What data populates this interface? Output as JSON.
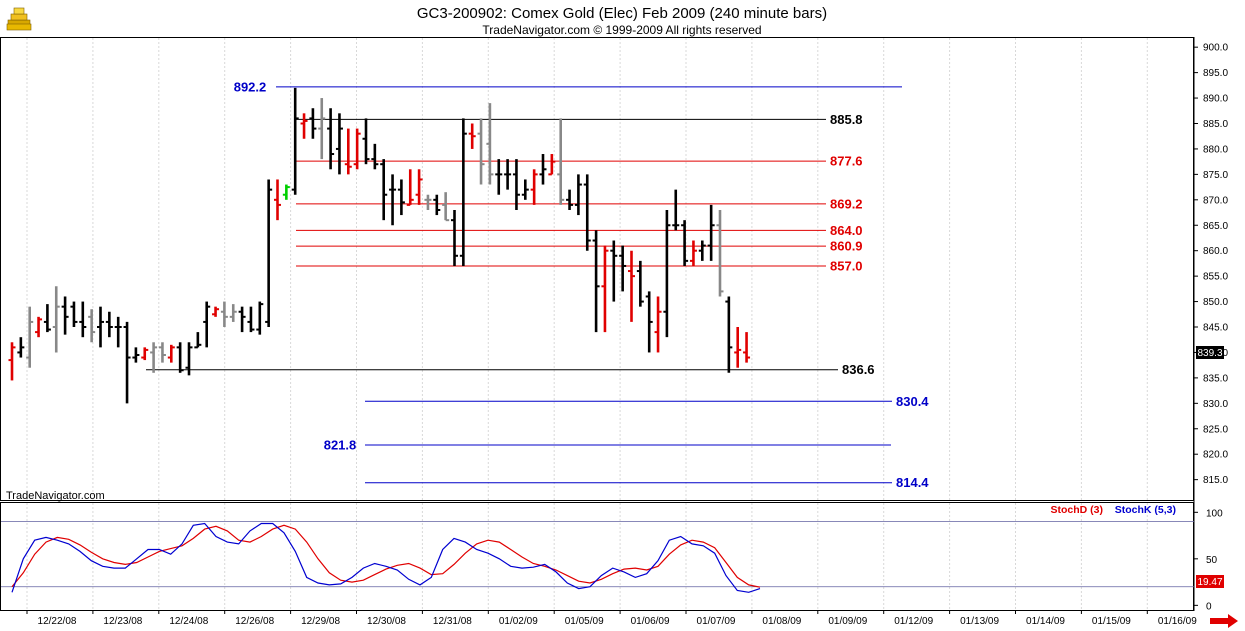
{
  "header": {
    "title": "GC3-200902:  Comex Gold (Elec) Feb 2009  (240 minute bars)",
    "subtitle": "TradeNavigator.com © 1999-2009 All rights reserved",
    "watermark": "TradeNavigator.com"
  },
  "icons": {
    "logo": "gold-bars-icon",
    "scroll": "scroll-right-arrow-icon"
  },
  "colors": {
    "up_bar": "#e00000",
    "down_bar": "#000000",
    "neutral_bar": "#888888",
    "blue_level": "#0000c8",
    "red_level": "#e00000",
    "black_level": "#000000",
    "stochD": "#e00000",
    "stochK": "#0000d0",
    "grid": "#d8d8d8"
  },
  "chart_data": [
    {
      "type": "ohlc",
      "title": "GC3-200902:  Comex Gold (Elec) Feb 2009  (240 minute bars)",
      "ylim": [
        811,
        902
      ],
      "y_ticks": [
        "900.0",
        "895.0",
        "890.0",
        "885.0",
        "880.0",
        "875.0",
        "870.0",
        "865.0",
        "860.0",
        "855.0",
        "850.0",
        "845.0",
        "840.0",
        "835.0",
        "830.0",
        "825.0",
        "820.0",
        "815.0"
      ],
      "x_ticks": [
        "12/22/08",
        "12/23/08",
        "12/24/08",
        "12/26/08",
        "12/29/08",
        "12/30/08",
        "12/31/08",
        "01/02/09",
        "01/05/09",
        "01/06/09",
        "01/07/09",
        "01/08/09",
        "01/09/09",
        "01/12/09",
        "01/13/09",
        "01/14/09",
        "01/15/09",
        "01/16/09"
      ],
      "last_price": "839.3",
      "levels": [
        {
          "label": "892.2",
          "value": 892.2,
          "color": "blue"
        },
        {
          "label": "885.8",
          "value": 885.8,
          "color": "black"
        },
        {
          "label": "877.6",
          "value": 877.6,
          "color": "red"
        },
        {
          "label": "869.2",
          "value": 869.2,
          "color": "red"
        },
        {
          "label": "864.0",
          "value": 864.0,
          "color": "red"
        },
        {
          "label": "860.9",
          "value": 860.9,
          "color": "red"
        },
        {
          "label": "857.0",
          "value": 857.0,
          "color": "red"
        },
        {
          "label": "836.6",
          "value": 836.6,
          "color": "black"
        },
        {
          "label": "830.4",
          "value": 830.4,
          "color": "blue"
        },
        {
          "label": "821.8",
          "value": 821.8,
          "color": "blue"
        },
        {
          "label": "814.4",
          "value": 814.4,
          "color": "blue"
        }
      ],
      "bars": [
        {
          "o": 838.5,
          "h": 842.0,
          "l": 834.5,
          "c": 841.0,
          "col": "red"
        },
        {
          "o": 840.0,
          "h": 843.0,
          "l": 839.0,
          "c": 841.0,
          "col": "black"
        },
        {
          "o": 839.0,
          "h": 849.0,
          "l": 837.0,
          "c": 846.0,
          "col": "gray"
        },
        {
          "o": 844.0,
          "h": 847.0,
          "l": 843.0,
          "c": 846.5,
          "col": "red"
        },
        {
          "o": 846.0,
          "h": 849.5,
          "l": 844.0,
          "c": 844.5,
          "col": "black"
        },
        {
          "o": 845.0,
          "h": 853.0,
          "l": 840.0,
          "c": 849.0,
          "col": "gray"
        },
        {
          "o": 849.0,
          "h": 851.0,
          "l": 843.5,
          "c": 847.0,
          "col": "black"
        },
        {
          "o": 849.0,
          "h": 850.0,
          "l": 845.0,
          "c": 846.0,
          "col": "black"
        },
        {
          "o": 846.0,
          "h": 850.0,
          "l": 843.0,
          "c": 845.0,
          "col": "black"
        },
        {
          "o": 847.0,
          "h": 848.5,
          "l": 842.0,
          "c": 844.0,
          "col": "gray"
        },
        {
          "o": 845.0,
          "h": 849.0,
          "l": 841.0,
          "c": 846.0,
          "col": "black"
        },
        {
          "o": 846.0,
          "h": 848.0,
          "l": 843.0,
          "c": 845.0,
          "col": "black"
        },
        {
          "o": 845.0,
          "h": 847.0,
          "l": 841.0,
          "c": 845.0,
          "col": "black"
        },
        {
          "o": 845.0,
          "h": 846.0,
          "l": 830.0,
          "c": 839.0,
          "col": "black"
        },
        {
          "o": 839.0,
          "h": 841.0,
          "l": 838.0,
          "c": 839.5,
          "col": "black"
        },
        {
          "o": 839.0,
          "h": 841.0,
          "l": 838.5,
          "c": 840.5,
          "col": "red"
        },
        {
          "o": 840.0,
          "h": 842.0,
          "l": 836.0,
          "c": 841.0,
          "col": "gray"
        },
        {
          "o": 841.0,
          "h": 842.0,
          "l": 838.0,
          "c": 839.5,
          "col": "gray"
        },
        {
          "o": 839.0,
          "h": 841.5,
          "l": 838.0,
          "c": 841.0,
          "col": "red"
        },
        {
          "o": 841.0,
          "h": 842.0,
          "l": 836.0,
          "c": 836.5,
          "col": "black"
        },
        {
          "o": 837.0,
          "h": 842.0,
          "l": 835.5,
          "c": 841.0,
          "col": "black"
        },
        {
          "o": 841.0,
          "h": 844.0,
          "l": 841.0,
          "c": 841.5,
          "col": "black"
        },
        {
          "o": 846.0,
          "h": 850.0,
          "l": 841.0,
          "c": 849.0,
          "col": "black"
        },
        {
          "o": 847.5,
          "h": 849.0,
          "l": 847.0,
          "c": 848.5,
          "col": "red"
        },
        {
          "o": 848.0,
          "h": 850.0,
          "l": 845.0,
          "c": 847.0,
          "col": "gray"
        },
        {
          "o": 847.0,
          "h": 849.5,
          "l": 846.0,
          "c": 848.0,
          "col": "gray"
        },
        {
          "o": 848.0,
          "h": 849.0,
          "l": 844.0,
          "c": 847.0,
          "col": "black"
        },
        {
          "o": 846.0,
          "h": 849.0,
          "l": 844.0,
          "c": 844.5,
          "col": "black"
        },
        {
          "o": 844.5,
          "h": 850.0,
          "l": 843.5,
          "c": 849.5,
          "col": "black"
        },
        {
          "o": 846.0,
          "h": 874.0,
          "l": 845.0,
          "c": 872.0,
          "col": "black"
        },
        {
          "o": 870.0,
          "h": 874.0,
          "l": 866.0,
          "c": 869.0,
          "col": "red"
        },
        {
          "o": 871.0,
          "h": 873.0,
          "l": 870.0,
          "c": 872.5,
          "col": "green"
        },
        {
          "o": 872.0,
          "h": 892.0,
          "l": 871.0,
          "c": 886.0,
          "col": "black"
        },
        {
          "o": 885.0,
          "h": 887.0,
          "l": 882.0,
          "c": 885.5,
          "col": "red"
        },
        {
          "o": 886.0,
          "h": 888.0,
          "l": 882.0,
          "c": 884.0,
          "col": "black"
        },
        {
          "o": 884.0,
          "h": 890.0,
          "l": 878.0,
          "c": 886.0,
          "col": "gray"
        },
        {
          "o": 884.0,
          "h": 888.0,
          "l": 876.0,
          "c": 879.0,
          "col": "black"
        },
        {
          "o": 880.0,
          "h": 887.0,
          "l": 875.0,
          "c": 884.0,
          "col": "black"
        },
        {
          "o": 877.0,
          "h": 884.0,
          "l": 875.0,
          "c": 876.5,
          "col": "red"
        },
        {
          "o": 877.0,
          "h": 884.0,
          "l": 876.0,
          "c": 883.0,
          "col": "red"
        },
        {
          "o": 882.0,
          "h": 886.0,
          "l": 877.0,
          "c": 878.0,
          "col": "black"
        },
        {
          "o": 878.0,
          "h": 881.0,
          "l": 876.0,
          "c": 877.0,
          "col": "black"
        },
        {
          "o": 877.0,
          "h": 878.0,
          "l": 866.0,
          "c": 871.0,
          "col": "black"
        },
        {
          "o": 872.0,
          "h": 875.0,
          "l": 865.0,
          "c": 872.0,
          "col": "black"
        },
        {
          "o": 872.0,
          "h": 874.0,
          "l": 867.0,
          "c": 869.5,
          "col": "black"
        },
        {
          "o": 869.0,
          "h": 876.0,
          "l": 869.0,
          "c": 870.0,
          "col": "red"
        },
        {
          "o": 871.0,
          "h": 876.0,
          "l": 869.0,
          "c": 874.0,
          "col": "red"
        },
        {
          "o": 870.0,
          "h": 871.0,
          "l": 868.0,
          "c": 870.0,
          "col": "gray"
        },
        {
          "o": 870.0,
          "h": 871.0,
          "l": 867.0,
          "c": 868.0,
          "col": "black"
        },
        {
          "o": 869.0,
          "h": 871.5,
          "l": 866.0,
          "c": 866.0,
          "col": "gray"
        },
        {
          "o": 866.0,
          "h": 868.0,
          "l": 857.0,
          "c": 859.0,
          "col": "black"
        },
        {
          "o": 859.0,
          "h": 886.0,
          "l": 857.0,
          "c": 883.0,
          "col": "black"
        },
        {
          "o": 883.0,
          "h": 885.0,
          "l": 880.0,
          "c": 882.5,
          "col": "red"
        },
        {
          "o": 883.0,
          "h": 886.0,
          "l": 873.0,
          "c": 877.0,
          "col": "gray"
        },
        {
          "o": 881.0,
          "h": 889.0,
          "l": 873.0,
          "c": 875.0,
          "col": "gray"
        },
        {
          "o": 875.0,
          "h": 878.0,
          "l": 871.0,
          "c": 875.0,
          "col": "black"
        },
        {
          "o": 875.0,
          "h": 878.0,
          "l": 872.0,
          "c": 875.0,
          "col": "black"
        },
        {
          "o": 875.0,
          "h": 878.0,
          "l": 868.0,
          "c": 871.0,
          "col": "black"
        },
        {
          "o": 871.0,
          "h": 874.0,
          "l": 870.0,
          "c": 872.0,
          "col": "black"
        },
        {
          "o": 872.0,
          "h": 876.0,
          "l": 869.0,
          "c": 875.0,
          "col": "red"
        },
        {
          "o": 875.0,
          "h": 879.0,
          "l": 873.0,
          "c": 876.0,
          "col": "black"
        },
        {
          "o": 875.0,
          "h": 879.0,
          "l": 875.0,
          "c": 877.5,
          "col": "red"
        },
        {
          "o": 875.0,
          "h": 886.0,
          "l": 869.0,
          "c": 870.0,
          "col": "gray"
        },
        {
          "o": 870.0,
          "h": 872.0,
          "l": 868.0,
          "c": 869.0,
          "col": "black"
        },
        {
          "o": 869.0,
          "h": 875.0,
          "l": 867.0,
          "c": 873.0,
          "col": "black"
        },
        {
          "o": 873.0,
          "h": 875.0,
          "l": 860.0,
          "c": 862.0,
          "col": "black"
        },
        {
          "o": 862.0,
          "h": 864.0,
          "l": 844.0,
          "c": 853.0,
          "col": "black"
        },
        {
          "o": 853.0,
          "h": 861.0,
          "l": 844.0,
          "c": 860.0,
          "col": "red"
        },
        {
          "o": 860.0,
          "h": 862.0,
          "l": 850.0,
          "c": 859.0,
          "col": "black"
        },
        {
          "o": 859.0,
          "h": 861.0,
          "l": 852.0,
          "c": 857.0,
          "col": "black"
        },
        {
          "o": 856.0,
          "h": 860.0,
          "l": 846.0,
          "c": 855.0,
          "col": "red"
        },
        {
          "o": 856.0,
          "h": 858.0,
          "l": 849.0,
          "c": 850.0,
          "col": "black"
        },
        {
          "o": 851.0,
          "h": 852.0,
          "l": 840.0,
          "c": 846.0,
          "col": "black"
        },
        {
          "o": 844.0,
          "h": 851.0,
          "l": 840.0,
          "c": 848.0,
          "col": "red"
        },
        {
          "o": 848.0,
          "h": 868.0,
          "l": 843.0,
          "c": 865.0,
          "col": "black"
        },
        {
          "o": 865.0,
          "h": 872.0,
          "l": 864.0,
          "c": 865.0,
          "col": "black"
        },
        {
          "o": 865.0,
          "h": 866.0,
          "l": 857.0,
          "c": 858.0,
          "col": "black"
        },
        {
          "o": 858.0,
          "h": 862.0,
          "l": 857.0,
          "c": 860.0,
          "col": "red"
        },
        {
          "o": 860.0,
          "h": 862.0,
          "l": 858.0,
          "c": 861.0,
          "col": "black"
        },
        {
          "o": 861.0,
          "h": 869.0,
          "l": 858.0,
          "c": 865.0,
          "col": "black"
        },
        {
          "o": 865.0,
          "h": 868.0,
          "l": 851.0,
          "c": 852.0,
          "col": "gray"
        },
        {
          "o": 850.0,
          "h": 851.0,
          "l": 836.0,
          "c": 841.0,
          "col": "black"
        },
        {
          "o": 840.0,
          "h": 845.0,
          "l": 837.0,
          "c": 840.5,
          "col": "red"
        },
        {
          "o": 840.0,
          "h": 844.0,
          "l": 838.0,
          "c": 839.0,
          "col": "red"
        }
      ]
    },
    {
      "type": "line",
      "title": "",
      "ylim": [
        -5,
        110
      ],
      "y_ticks": [
        "100",
        "50",
        "0"
      ],
      "overbought": 90,
      "oversold": 20,
      "series": [
        {
          "name": "StochD (3)",
          "color": "red",
          "last": "19.47",
          "values": [
            20,
            35,
            55,
            68,
            73,
            71,
            65,
            57,
            50,
            46,
            44,
            46,
            52,
            58,
            61,
            64,
            72,
            82,
            85,
            80,
            70,
            68,
            74,
            82,
            86,
            82,
            68,
            50,
            35,
            27,
            25,
            27,
            33,
            39,
            43,
            45,
            40,
            33,
            34,
            44,
            56,
            66,
            70,
            68,
            60,
            52,
            45,
            42,
            38,
            32,
            26,
            24,
            28,
            34,
            39,
            40,
            38,
            42,
            55,
            65,
            70,
            68,
            62,
            46,
            30,
            22,
            19.47
          ]
        },
        {
          "name": "StochK (5,3)",
          "color": "blue",
          "last": "",
          "values": [
            14,
            50,
            70,
            73,
            70,
            66,
            58,
            48,
            42,
            40,
            40,
            50,
            60,
            60,
            55,
            66,
            86,
            88,
            74,
            68,
            66,
            80,
            88,
            88,
            78,
            58,
            30,
            24,
            22,
            23,
            30,
            40,
            45,
            42,
            38,
            28,
            22,
            30,
            60,
            72,
            68,
            60,
            56,
            50,
            42,
            40,
            41,
            44,
            36,
            24,
            18,
            20,
            32,
            40,
            36,
            30,
            34,
            48,
            70,
            74,
            66,
            64,
            56,
            32,
            16,
            14,
            18
          ]
        }
      ],
      "legend": [
        "StochD (3)",
        "StochK (5,3)"
      ]
    }
  ]
}
